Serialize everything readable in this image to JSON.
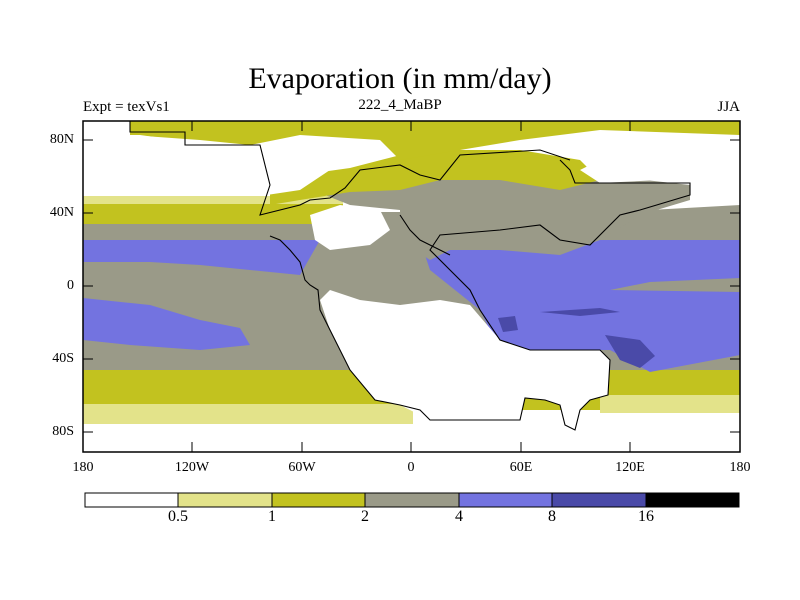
{
  "figure": {
    "title": "Evaporation (in mm/day)",
    "left_string": "Expt = texVs1",
    "center_string": "222_4_MaBP",
    "right_string": "JJA"
  },
  "map": {
    "projection": "cylindrical-equidistant",
    "lon_range": [
      -180,
      180
    ],
    "lat_range": [
      -90,
      90
    ],
    "lat_labels": [
      "80N",
      "40N",
      "0",
      "40S",
      "80S"
    ],
    "lon_labels": [
      "180",
      "120W",
      "60W",
      "0",
      "60E",
      "120E",
      "180"
    ]
  },
  "colorbar": {
    "levels": [
      "0.5",
      "1",
      "2",
      "4",
      "8",
      "16"
    ],
    "colors": [
      "#ffffff",
      "#e3e38a",
      "#c2c21f",
      "#9a9a88",
      "#7373e0",
      "#4a4aa8",
      "#000000"
    ]
  },
  "chart_data": {
    "type": "heatmap",
    "title": "Evaporation (in mm/day)",
    "variable": "Evaporation",
    "units": "mm/day",
    "season": "JJA",
    "experiment": "texVs1",
    "case": "222_4_MaBP",
    "contour_levels": [
      0.5,
      1,
      2,
      4,
      8,
      16
    ],
    "fill_colors": [
      "#ffffff",
      "#e3e38a",
      "#c2c21f",
      "#9a9a88",
      "#7373e0",
      "#4a4aa8",
      "#000000"
    ],
    "xlim": [
      -180,
      180
    ],
    "ylim": [
      -90,
      90
    ]
  }
}
